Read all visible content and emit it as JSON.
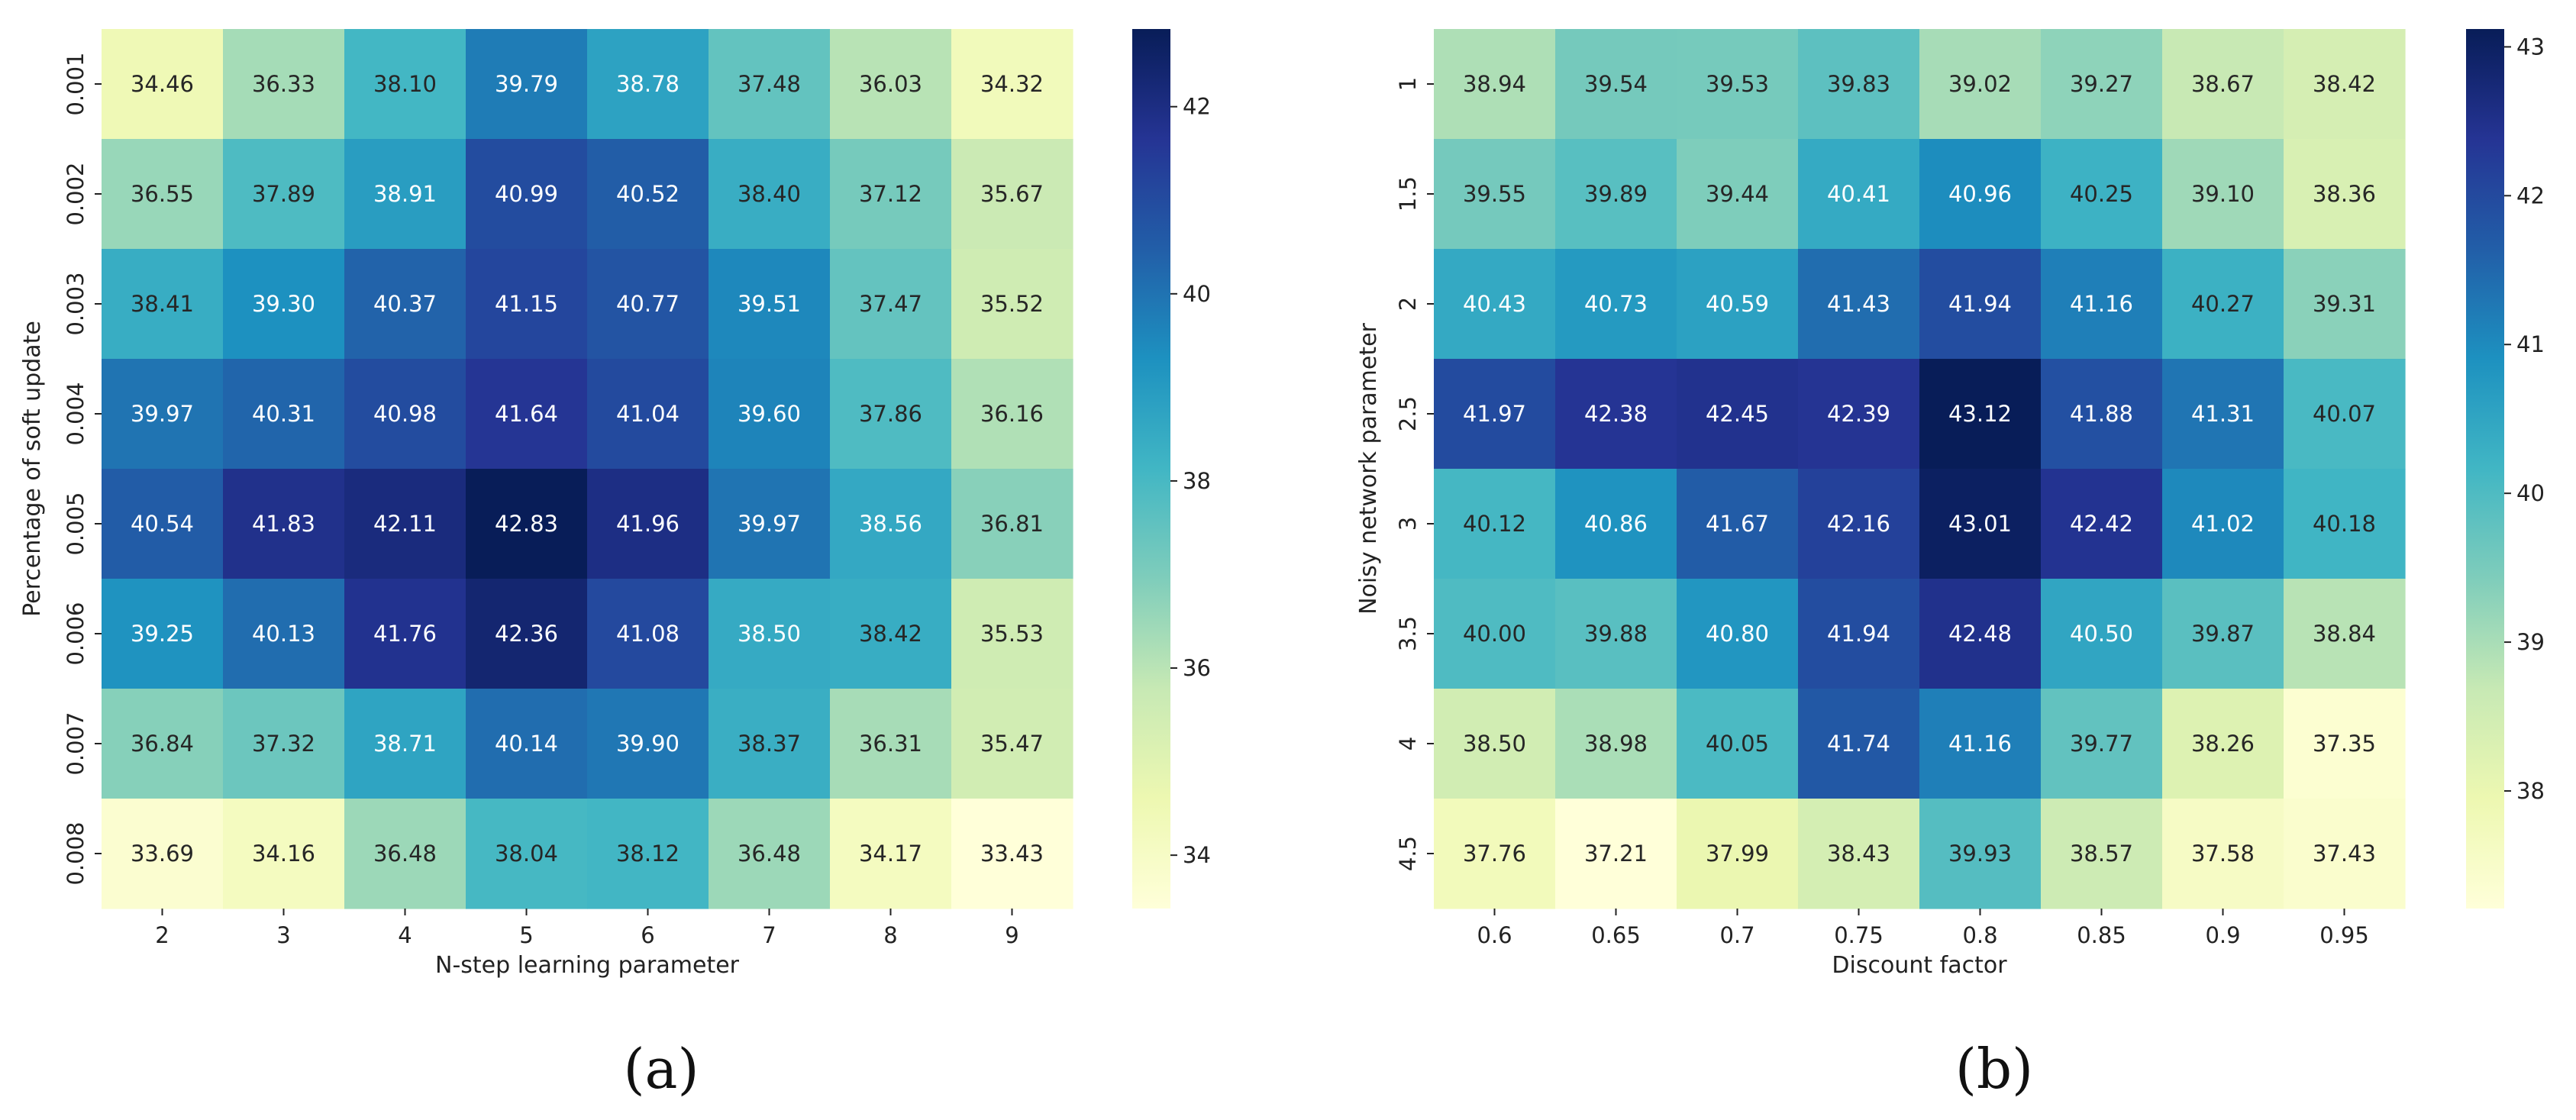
{
  "chart_data": [
    {
      "type": "heatmap",
      "caption": "(a)",
      "xlabel": "N-step learning parameter",
      "ylabel": "Percentage of soft update",
      "x": [
        "2",
        "3",
        "4",
        "5",
        "6",
        "7",
        "8",
        "9"
      ],
      "y": [
        "0.001",
        "0.002",
        "0.003",
        "0.004",
        "0.005",
        "0.006",
        "0.007",
        "0.008"
      ],
      "values": [
        [
          34.46,
          36.33,
          38.1,
          39.79,
          38.78,
          37.48,
          36.03,
          34.32
        ],
        [
          36.55,
          37.89,
          38.91,
          40.99,
          40.52,
          38.4,
          37.12,
          35.67
        ],
        [
          38.41,
          39.3,
          40.37,
          41.15,
          40.77,
          39.51,
          37.47,
          35.52
        ],
        [
          39.97,
          40.31,
          40.98,
          41.64,
          41.04,
          39.6,
          37.86,
          36.16
        ],
        [
          40.54,
          41.83,
          42.11,
          42.83,
          41.96,
          39.97,
          38.56,
          36.81
        ],
        [
          39.25,
          40.13,
          41.76,
          42.36,
          41.08,
          38.5,
          38.42,
          35.53
        ],
        [
          36.84,
          37.32,
          38.71,
          40.14,
          39.9,
          38.37,
          36.31,
          35.47
        ],
        [
          33.69,
          34.16,
          36.48,
          38.04,
          38.12,
          36.48,
          34.17,
          33.43
        ]
      ],
      "value_format": "2 decimals",
      "colormap": "YlGnBu",
      "colorbar": {
        "range": [
          33.43,
          42.83
        ],
        "ticks": [
          34,
          36,
          38,
          40,
          42
        ]
      }
    },
    {
      "type": "heatmap",
      "caption": "(b)",
      "xlabel": "Discount factor",
      "ylabel": "Noisy network parameter",
      "x": [
        "0.6",
        "0.65",
        "0.7",
        "0.75",
        "0.8",
        "0.85",
        "0.9",
        "0.95"
      ],
      "y": [
        "1",
        "1.5",
        "2",
        "2.5",
        "3",
        "3.5",
        "4",
        "4.5"
      ],
      "values": [
        [
          38.94,
          39.54,
          39.53,
          39.83,
          39.02,
          39.27,
          38.67,
          38.42
        ],
        [
          39.55,
          39.89,
          39.44,
          40.41,
          40.96,
          40.25,
          39.1,
          38.36
        ],
        [
          40.43,
          40.73,
          40.59,
          41.43,
          41.94,
          41.16,
          40.27,
          39.31
        ],
        [
          41.97,
          42.38,
          42.45,
          42.39,
          43.12,
          41.88,
          41.31,
          40.07
        ],
        [
          40.12,
          40.86,
          41.67,
          42.16,
          43.01,
          42.42,
          41.02,
          40.18
        ],
        [
          40.0,
          39.88,
          40.8,
          41.94,
          42.48,
          40.5,
          39.87,
          38.84
        ],
        [
          38.5,
          38.98,
          40.05,
          41.74,
          41.16,
          39.77,
          38.26,
          37.35
        ],
        [
          37.76,
          37.21,
          37.99,
          38.43,
          39.93,
          38.57,
          37.58,
          37.43
        ]
      ],
      "value_format": "2 decimals",
      "colormap": "YlGnBu",
      "colorbar": {
        "range": [
          37.21,
          43.12
        ],
        "ticks": [
          38,
          39,
          40,
          41,
          42,
          43
        ]
      }
    }
  ]
}
